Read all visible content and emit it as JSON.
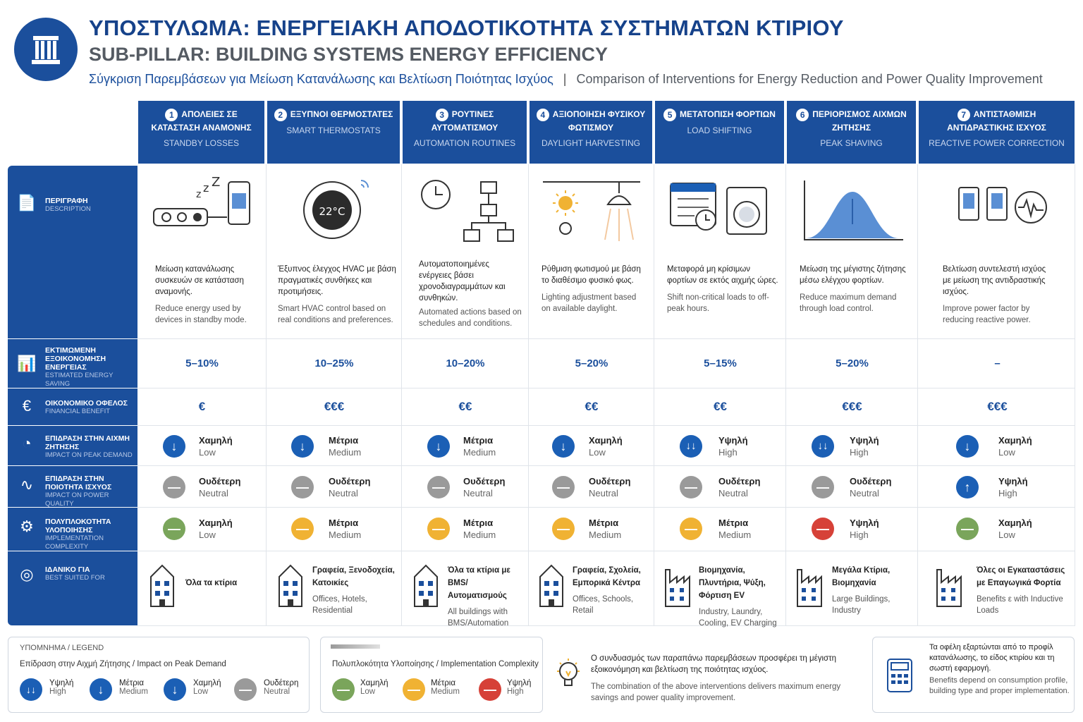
{
  "title_gr": "ΥΠΟΣΤΥΛΩΜΑ: ΕΝΕΡΓΕΙΑΚΗ ΑΠΟΔΟΤΙΚΟΤΗΤΑ ΣΥΣΤΗΜΑΤΩΝ ΚΤΙΡΙΟΥ",
  "title_en": "SUB-PILLAR: BUILDING SYSTEMS ENERGY EFFICIENCY",
  "subtitle_gr": "Σύγκριση Παρεμβάσεων για Μείωση Κατανάλωσης και Βελτίωση Ποιότητας Ισχύος",
  "subtitle_sep": "|",
  "subtitle_en": "Comparison of Interventions for Energy Reduction and Power Quality Improvement",
  "columns": [
    {
      "num": "1",
      "gr": "ΑΠΟΛΕΙΕΣ ΣΕ ΚΑΤΑΣΤΑΣΗ ΑΝΑΜΟΝΗΣ",
      "en": "STANDBY LOSSES",
      "desc_gr": "Μείωση κατανάλωσης συσκευών σε κατάσταση αναμονής.",
      "desc_en": "Reduce energy used by devices in standby mode.",
      "saving": "5–10%",
      "financial": "€",
      "peak_gr": "Χαμηλή",
      "peak_en": "Low",
      "pq_gr": "Ουδέτερη",
      "pq_en": "Neutral",
      "cx_gr": "Χαμηλή",
      "cx_en": "Low",
      "best_gr": "Όλα τα κτίρια",
      "best_en": ""
    },
    {
      "num": "2",
      "gr": "ΕΞΥΠΝΟΙ ΘΕΡΜΟΣΤΑΤΕΣ",
      "en": "SMART THERMOSTATS",
      "desc_gr": "Έξυπνος έλεγχος HVAC με βάση πραγματικές συνθήκες και προτιμήσεις.",
      "desc_en": "Smart HVAC control based on real conditions and preferences.",
      "saving": "10–25%",
      "financial": "€€€",
      "peak_gr": "Μέτρια",
      "peak_en": "Medium",
      "pq_gr": "Ουδέτερη",
      "pq_en": "Neutral",
      "cx_gr": "Μέτρια",
      "cx_en": "Medium",
      "best_gr": "Γραφεία, Ξενοδοχεία, Κατοικίες",
      "best_en": "Offices, Hotels, Residential"
    },
    {
      "num": "3",
      "gr": "ΡΟΥΤΙΝΕΣ ΑΥΤΟΜΑΤΙΣΜΟΥ",
      "en": "AUTOMATION ROUTINES",
      "desc_gr": "Αυτοματοποιημένες ενέργειες βάσει χρονοδιαγραμμάτων και συνθηκών.",
      "desc_en": "Automated actions based on schedules and conditions.",
      "saving": "10–20%",
      "financial": "€€",
      "peak_gr": "Μέτρια",
      "peak_en": "Medium",
      "pq_gr": "Ουδέτερη",
      "pq_en": "Neutral",
      "cx_gr": "Μέτρια",
      "cx_en": "Medium",
      "best_gr": "Όλα τα κτίρια με BMS/Αυτοματισμούς",
      "best_en": "All buildings with BMS/Automation"
    },
    {
      "num": "4",
      "gr": "ΑΞΙΟΠΟΙΗΣΗ ΦΥΣΙΚΟΥ ΦΩΤΙΣΜΟΥ",
      "en": "DAYLIGHT HARVESTING",
      "desc_gr": "Ρύθμιση φωτισμού με βάση το διαθέσιμο φυσικό φως.",
      "desc_en": "Lighting adjustment based on available daylight.",
      "saving": "5–20%",
      "financial": "€€",
      "peak_gr": "Χαμηλή",
      "peak_en": "Low",
      "pq_gr": "Ουδέτερη",
      "pq_en": "Neutral",
      "cx_gr": "Μέτρια",
      "cx_en": "Medium",
      "best_gr": "Γραφεία, Σχολεία, Εμπορικά Κέντρα",
      "best_en": "Offices, Schools, Retail"
    },
    {
      "num": "5",
      "gr": "ΜΕΤΑΤΟΠΙΣΗ ΦΟΡΤΙΩΝ",
      "en": "LOAD SHIFTING",
      "desc_gr": "Μεταφορά μη κρίσιμων φορτίων σε εκτός αιχμής ώρες.",
      "desc_en": "Shift non-critical loads to off-peak hours.",
      "saving": "5–15%",
      "financial": "€€",
      "peak_gr": "Υψηλή",
      "peak_en": "High",
      "pq_gr": "Ουδέτερη",
      "pq_en": "Neutral",
      "cx_gr": "Μέτρια",
      "cx_en": "Medium",
      "best_gr": "Βιομηχανία, Πλυντήρια, Ψύξη, Φόρτιση EV",
      "best_en": "Industry, Laundry, Cooling, EV Charging"
    },
    {
      "num": "6",
      "gr": "ΠΕΡΙΟΡΙΣΜΟΣ ΑΙΧΜΩΝ ΖΗΤΗΣΗΣ",
      "en": "PEAK SHAVING",
      "desc_gr": "Μείωση της μέγιστης ζήτησης μέσω ελέγχου φορτίων.",
      "desc_en": "Reduce maximum demand through load control.",
      "saving": "5–20%",
      "financial": "€€€",
      "peak_gr": "Υψηλή",
      "peak_en": "High",
      "pq_gr": "Ουδέτερη",
      "pq_en": "Neutral",
      "cx_gr": "Υψηλή",
      "cx_en": "High",
      "best_gr": "Μεγάλα Κτίρια, Βιομηχανία",
      "best_en": "Large Buildings, Industry"
    },
    {
      "num": "7",
      "gr": "ΑΝΤΙΣΤΑΘΜΙΣΗ ΑΝΤΙΔΡΑΣΤΙΚΗΣ ΙΣΧΥΟΣ",
      "en": "REACTIVE POWER CORRECTION",
      "desc_gr": "Βελτίωση συντελεστή ισχύος με μείωση της αντιδραστικής ισχύος.",
      "desc_en": "Improve power factor by reducing reactive power.",
      "saving": "–",
      "financial": "€€€",
      "peak_gr": "Χαμηλή",
      "peak_en": "Low",
      "pq_gr": "Υψηλή",
      "pq_en": "High",
      "cx_gr": "Χαμηλή",
      "cx_en": "Low",
      "best_gr": "Όλες οι Εγκαταστάσεις με Επαγωγικά Φορτία",
      "best_en": "Benefits ε with Inductive Loads"
    }
  ],
  "rows": {
    "description": {
      "gr": "ΠΕΡΙΓΡΑΦΗ",
      "en": "DESCRIPTION",
      "icon": "document-icon"
    },
    "saving": {
      "gr": "ΕΚΤΙΜΩΜΕΝΗ ΕΞΟΙΚΟΝΟΜΗΣΗ ΕΝΕΡΓΕΙΑΣ",
      "en": "ESTIMATED ENERGY SAVING",
      "icon": "bar-chart-icon"
    },
    "financial": {
      "gr": "ΟΙΚΟΝΟΜΙΚΟ ΟΦΕΛΟΣ",
      "en": "FINANCIAL BENEFIT",
      "icon": "euro-icon"
    },
    "peak": {
      "gr": "ΕΠΙΔΡΑΣΗ ΣΤΗΝ ΑΙΧΜΗ ΖΗΤΗΣΗΣ",
      "en": "IMPACT ON PEAK DEMAND",
      "icon": "gauge-icon"
    },
    "pq": {
      "gr": "ΕΠΙΔΡΑΣΗ ΣΤΗΝ ΠΟΙΟΤΗΤΑ ΙΣΧΥΟΣ",
      "en": "IMPACT ON POWER QUALITY",
      "icon": "waveform-icon"
    },
    "complexity": {
      "gr": "ΠΟΛΥΠΛΟΚΟΤΗΤΑ ΥΛΟΠΟΙΗΣΗΣ",
      "en": "IMPLEMENTATION COMPLEXITY",
      "icon": "gear-icon"
    },
    "best": {
      "gr": "ΙΔΑΝΙΚΟ ΓΙΑ",
      "en": "BEST SUITED FOR",
      "icon": "target-icon"
    }
  },
  "legend1": {
    "title": "ΥΠΟΜΝΗΜΑ / LEGEND",
    "sub": "Επίδραση στην Αιχμή Ζήτησης / Impact on Peak Demand",
    "items": [
      {
        "gr": "Υψηλή",
        "en": "High"
      },
      {
        "gr": "Μέτρια",
        "en": "Medium"
      },
      {
        "gr": "Χαμηλή",
        "en": "Low"
      },
      {
        "gr": "Ουδέτερη",
        "en": "Neutral"
      }
    ]
  },
  "legend2": {
    "sub": "Πολυπλοκότητα Υλοποίησης / Implementation Complexity",
    "items": [
      {
        "gr": "Χαμηλή",
        "en": "Low"
      },
      {
        "gr": "Μέτρια",
        "en": "Medium"
      },
      {
        "gr": "Υψηλή",
        "en": "High"
      }
    ]
  },
  "note1": {
    "gr": "Ο συνδυασμός των παραπάνω παρεμβάσεων προσφέρει τη μέγιστη εξοικονόμηση και βελτίωση της ποιότητας ισχύος.",
    "en": "The combination of the above interventions delivers maximum energy savings and power quality improvement."
  },
  "note2": {
    "gr": "Τα οφέλη εξαρτώνται από το προφίλ κατανάλωσης, το είδος κτιρίου και τη σωστή εφαρμογή.",
    "en": "Benefits depend on consumption profile, building type and proper implementation."
  },
  "colors": {
    "brand": "#1b4f9c",
    "low_green": "#7aa55b",
    "medium_yellow": "#f0b233",
    "high_red": "#d64138",
    "neutral_grey": "#9a9a9a",
    "arrow_blue": "#1b5fb5"
  }
}
